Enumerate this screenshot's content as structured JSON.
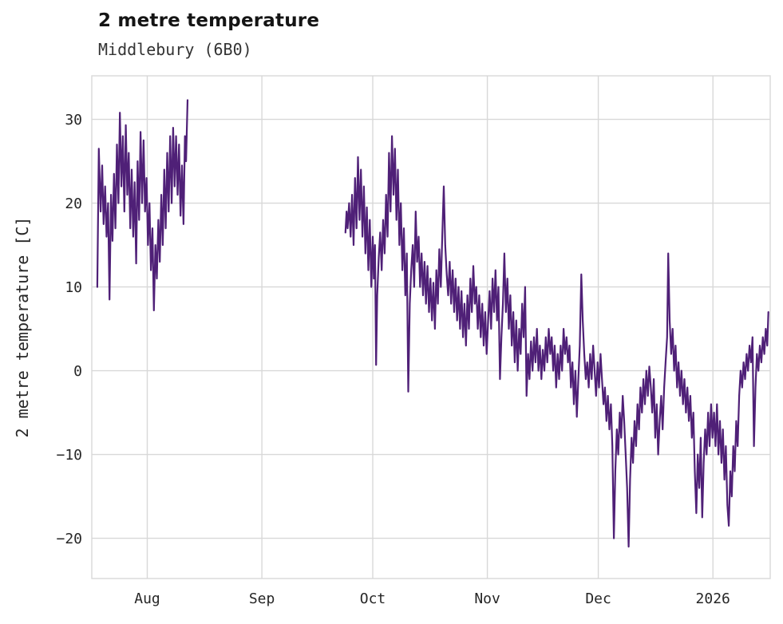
{
  "chart_data": {
    "type": "line",
    "title": "2 metre temperature",
    "subtitle": "Middlebury (6B0)",
    "xlabel": "",
    "ylabel": "2 metre temperature [C]",
    "line_color": "#4f2077",
    "grid": true,
    "legend": "none",
    "x_unit": "days",
    "xlim": [
      0,
      183.5
    ],
    "ylim": [
      -24.8,
      35.2
    ],
    "x_ticks": [
      {
        "x": 15,
        "label": "Aug"
      },
      {
        "x": 46,
        "label": "Sep"
      },
      {
        "x": 76,
        "label": "Oct"
      },
      {
        "x": 107,
        "label": "Nov"
      },
      {
        "x": 137,
        "label": "Dec"
      },
      {
        "x": 168,
        "label": "2026"
      }
    ],
    "y_ticks": [
      {
        "y": -20,
        "label": "−20"
      },
      {
        "y": -10,
        "label": "−10"
      },
      {
        "y": 0,
        "label": "0"
      },
      {
        "y": 10,
        "label": "10"
      },
      {
        "y": 20,
        "label": "20"
      },
      {
        "y": 30,
        "label": "30"
      }
    ],
    "segments": [
      [
        [
          1.5,
          10.0
        ],
        [
          1.9,
          26.5
        ],
        [
          2.4,
          19.0
        ],
        [
          2.8,
          24.5
        ],
        [
          3.2,
          17.5
        ],
        [
          3.6,
          22.0
        ],
        [
          4.0,
          16.0
        ],
        [
          4.4,
          20.0
        ],
        [
          4.8,
          8.5
        ],
        [
          5.2,
          21.0
        ],
        [
          5.6,
          15.5
        ],
        [
          6.0,
          23.5
        ],
        [
          6.4,
          17.0
        ],
        [
          6.8,
          27.0
        ],
        [
          7.2,
          20.0
        ],
        [
          7.6,
          30.8
        ],
        [
          8.0,
          22.0
        ],
        [
          8.4,
          28.0
        ],
        [
          8.8,
          19.0
        ],
        [
          9.2,
          29.3
        ],
        [
          9.6,
          21.0
        ],
        [
          10.0,
          26.0
        ],
        [
          10.4,
          17.0
        ],
        [
          10.8,
          24.0
        ],
        [
          11.2,
          16.0
        ],
        [
          11.6,
          22.5
        ],
        [
          12.0,
          12.8
        ],
        [
          12.4,
          25.0
        ],
        [
          12.8,
          18.0
        ],
        [
          13.2,
          28.5
        ],
        [
          13.6,
          20.0
        ],
        [
          14.0,
          27.5
        ],
        [
          14.4,
          19.0
        ],
        [
          14.8,
          23.0
        ],
        [
          15.2,
          15.0
        ],
        [
          15.6,
          20.0
        ],
        [
          16.0,
          12.0
        ],
        [
          16.4,
          17.0
        ],
        [
          16.8,
          7.2
        ],
        [
          17.2,
          15.0
        ],
        [
          17.6,
          11.0
        ],
        [
          18.0,
          18.0
        ],
        [
          18.4,
          13.0
        ],
        [
          18.8,
          21.0
        ],
        [
          19.2,
          15.0
        ],
        [
          19.6,
          24.0
        ],
        [
          20.0,
          17.0
        ],
        [
          20.4,
          26.0
        ],
        [
          20.8,
          19.0
        ],
        [
          21.2,
          28.0
        ],
        [
          21.6,
          20.0
        ],
        [
          22.0,
          29.0
        ],
        [
          22.4,
          22.0
        ],
        [
          22.8,
          28.0
        ],
        [
          23.2,
          21.0
        ],
        [
          23.6,
          27.0
        ],
        [
          24.0,
          18.5
        ],
        [
          24.4,
          24.5
        ],
        [
          24.8,
          17.5
        ],
        [
          25.2,
          28.0
        ],
        [
          25.5,
          25.0
        ],
        [
          25.9,
          32.3
        ]
      ],
      [
        [
          68.6,
          16.5
        ],
        [
          68.9,
          19.0
        ],
        [
          69.2,
          17.0
        ],
        [
          69.6,
          20.0
        ],
        [
          70.0,
          16.0
        ],
        [
          70.4,
          21.0
        ],
        [
          70.8,
          15.0
        ],
        [
          71.2,
          23.0
        ],
        [
          71.6,
          17.0
        ],
        [
          72.0,
          25.5
        ],
        [
          72.4,
          18.0
        ],
        [
          72.8,
          24.0
        ],
        [
          73.2,
          16.0
        ],
        [
          73.6,
          22.0
        ],
        [
          74.0,
          14.0
        ],
        [
          74.4,
          19.5
        ],
        [
          74.8,
          12.0
        ],
        [
          75.2,
          18.0
        ],
        [
          75.6,
          10.0
        ],
        [
          76.0,
          16.0
        ],
        [
          76.3,
          11.0
        ],
        [
          76.6,
          15.0
        ],
        [
          76.9,
          0.7
        ],
        [
          77.2,
          9.0
        ],
        [
          77.6,
          13.5
        ],
        [
          78.0,
          16.5
        ],
        [
          78.4,
          12.0
        ],
        [
          78.8,
          18.0
        ],
        [
          79.2,
          14.0
        ],
        [
          79.6,
          21.0
        ],
        [
          80.0,
          16.0
        ],
        [
          80.4,
          26.0
        ],
        [
          80.8,
          19.0
        ],
        [
          81.2,
          28.0
        ],
        [
          81.6,
          21.0
        ],
        [
          82.0,
          26.5
        ],
        [
          82.4,
          18.0
        ],
        [
          82.8,
          24.0
        ],
        [
          83.2,
          15.0
        ],
        [
          83.6,
          20.0
        ],
        [
          84.0,
          12.0
        ],
        [
          84.4,
          17.0
        ],
        [
          84.8,
          9.0
        ],
        [
          85.2,
          14.0
        ],
        [
          85.6,
          -2.5
        ],
        [
          86.0,
          8.0
        ],
        [
          86.4,
          12.0
        ],
        [
          86.8,
          15.0
        ],
        [
          87.2,
          10.0
        ],
        [
          87.6,
          19.0
        ],
        [
          88.0,
          13.0
        ],
        [
          88.4,
          16.0
        ],
        [
          88.8,
          10.0
        ],
        [
          89.2,
          14.0
        ],
        [
          89.6,
          9.0
        ],
        [
          90.0,
          13.0
        ],
        [
          90.4,
          8.0
        ],
        [
          90.8,
          12.5
        ],
        [
          91.2,
          7.0
        ],
        [
          91.6,
          11.0
        ],
        [
          92.0,
          6.0
        ],
        [
          92.4,
          10.5
        ],
        [
          92.8,
          5.0
        ],
        [
          93.2,
          12.0
        ],
        [
          93.6,
          8.0
        ],
        [
          94.0,
          14.5
        ],
        [
          94.4,
          10.0
        ],
        [
          94.8,
          16.0
        ],
        [
          95.2,
          22.0
        ],
        [
          95.6,
          15.0
        ],
        [
          96.0,
          11.5
        ],
        [
          96.4,
          9.0
        ],
        [
          96.8,
          13.0
        ],
        [
          97.2,
          8.0
        ],
        [
          97.6,
          12.0
        ],
        [
          98.0,
          7.0
        ],
        [
          98.4,
          11.0
        ],
        [
          98.8,
          6.0
        ],
        [
          99.2,
          10.0
        ],
        [
          99.6,
          5.0
        ],
        [
          100.0,
          9.5
        ],
        [
          100.4,
          4.0
        ],
        [
          100.8,
          8.0
        ],
        [
          101.2,
          3.0
        ],
        [
          101.6,
          9.0
        ],
        [
          102.0,
          5.0
        ],
        [
          102.4,
          11.0
        ],
        [
          102.8,
          7.0
        ],
        [
          103.2,
          12.5
        ],
        [
          103.6,
          8.0
        ],
        [
          104.0,
          10.0
        ],
        [
          104.4,
          5.0
        ],
        [
          104.8,
          9.0
        ],
        [
          105.2,
          4.0
        ],
        [
          105.6,
          8.0
        ],
        [
          106.0,
          3.0
        ],
        [
          106.4,
          7.0
        ],
        [
          106.8,
          2.0
        ],
        [
          107.2,
          6.0
        ],
        [
          107.6,
          9.5
        ],
        [
          108.0,
          5.0
        ],
        [
          108.4,
          11.0
        ],
        [
          108.8,
          7.0
        ],
        [
          109.2,
          12.0
        ],
        [
          109.6,
          6.0
        ],
        [
          110.0,
          10.0
        ],
        [
          110.4,
          -1.0
        ],
        [
          110.8,
          4.0
        ],
        [
          111.2,
          8.0
        ],
        [
          111.6,
          14.0
        ],
        [
          112.0,
          7.0
        ],
        [
          112.4,
          11.0
        ],
        [
          112.8,
          5.0
        ],
        [
          113.2,
          9.0
        ],
        [
          113.6,
          3.0
        ],
        [
          114.0,
          7.0
        ],
        [
          114.4,
          1.0
        ],
        [
          114.8,
          6.0
        ],
        [
          115.2,
          0.0
        ],
        [
          115.6,
          5.0
        ],
        [
          116.0,
          2.0
        ],
        [
          116.4,
          8.0
        ],
        [
          116.8,
          4.0
        ],
        [
          117.2,
          10.0
        ],
        [
          117.6,
          -3.0
        ],
        [
          118.0,
          2.0
        ],
        [
          118.4,
          -1.0
        ],
        [
          118.8,
          3.5
        ],
        [
          119.2,
          0.0
        ],
        [
          119.6,
          4.0
        ],
        [
          120.0,
          1.0
        ],
        [
          120.4,
          5.0
        ],
        [
          120.8,
          0.0
        ],
        [
          121.2,
          3.0
        ],
        [
          121.6,
          -1.0
        ],
        [
          122.0,
          2.5
        ],
        [
          122.4,
          0.0
        ],
        [
          122.8,
          4.0
        ],
        [
          123.2,
          1.0
        ],
        [
          123.6,
          5.0
        ],
        [
          124.0,
          2.0
        ],
        [
          124.4,
          4.0
        ],
        [
          124.8,
          0.0
        ],
        [
          125.2,
          3.0
        ],
        [
          125.6,
          -2.0
        ],
        [
          126.0,
          2.0
        ],
        [
          126.4,
          -1.0
        ],
        [
          126.8,
          3.0
        ],
        [
          127.2,
          0.0
        ],
        [
          127.6,
          5.0
        ],
        [
          128.0,
          2.0
        ],
        [
          128.4,
          4.0
        ],
        [
          128.8,
          1.0
        ],
        [
          129.2,
          3.0
        ],
        [
          129.6,
          -2.0
        ],
        [
          130.0,
          1.0
        ],
        [
          130.4,
          -4.0
        ],
        [
          130.8,
          0.0
        ],
        [
          131.2,
          -5.5
        ],
        [
          131.6,
          -1.0
        ],
        [
          132.0,
          3.0
        ],
        [
          132.4,
          11.5
        ],
        [
          132.8,
          6.0
        ],
        [
          133.2,
          2.0
        ],
        [
          133.6,
          -1.0
        ],
        [
          134.0,
          1.0
        ],
        [
          134.4,
          -2.0
        ],
        [
          134.8,
          2.0
        ],
        [
          135.2,
          -1.0
        ],
        [
          135.6,
          3.0
        ],
        [
          136.0,
          0.0
        ],
        [
          136.4,
          -3.0
        ],
        [
          136.8,
          1.0
        ],
        [
          137.2,
          -2.0
        ],
        [
          137.6,
          2.0
        ],
        [
          138.0,
          -1.0
        ],
        [
          138.4,
          -4.0
        ],
        [
          138.8,
          -2.0
        ],
        [
          139.2,
          -6.0
        ],
        [
          139.6,
          -3.0
        ],
        [
          140.0,
          -7.0
        ],
        [
          140.4,
          -4.0
        ],
        [
          140.8,
          -9.0
        ],
        [
          141.2,
          -20.0
        ],
        [
          141.6,
          -12.0
        ],
        [
          142.0,
          -7.0
        ],
        [
          142.4,
          -10.0
        ],
        [
          142.8,
          -5.0
        ],
        [
          143.2,
          -8.0
        ],
        [
          143.6,
          -3.0
        ],
        [
          144.0,
          -6.0
        ],
        [
          144.4,
          -10.0
        ],
        [
          144.8,
          -14.0
        ],
        [
          145.2,
          -21.0
        ],
        [
          145.6,
          -13.0
        ],
        [
          146.0,
          -8.0
        ],
        [
          146.4,
          -11.0
        ],
        [
          146.8,
          -6.0
        ],
        [
          147.2,
          -9.0
        ],
        [
          147.6,
          -4.0
        ],
        [
          148.0,
          -7.0
        ],
        [
          148.4,
          -2.0
        ],
        [
          148.8,
          -5.0
        ],
        [
          149.2,
          -1.0
        ],
        [
          149.6,
          -4.0
        ],
        [
          150.0,
          0.0
        ],
        [
          150.4,
          -3.0
        ],
        [
          150.8,
          0.5
        ],
        [
          151.2,
          -2.0
        ],
        [
          151.6,
          -5.0
        ],
        [
          152.0,
          -1.0
        ],
        [
          152.4,
          -8.0
        ],
        [
          152.8,
          -4.0
        ],
        [
          153.2,
          -10.0
        ],
        [
          153.6,
          -6.0
        ],
        [
          154.0,
          -3.0
        ],
        [
          154.4,
          -7.0
        ],
        [
          154.8,
          -2.0
        ],
        [
          155.2,
          1.0
        ],
        [
          155.6,
          4.0
        ],
        [
          155.9,
          14.0
        ],
        [
          156.3,
          6.0
        ],
        [
          156.7,
          2.0
        ],
        [
          157.1,
          5.0
        ],
        [
          157.5,
          0.0
        ],
        [
          157.9,
          3.0
        ],
        [
          158.3,
          -2.0
        ],
        [
          158.7,
          1.0
        ],
        [
          159.1,
          -3.0
        ],
        [
          159.5,
          0.0
        ],
        [
          159.9,
          -4.0
        ],
        [
          160.3,
          -1.0
        ],
        [
          160.7,
          -5.0
        ],
        [
          161.1,
          -2.0
        ],
        [
          161.5,
          -6.0
        ],
        [
          161.9,
          -3.0
        ],
        [
          162.3,
          -8.0
        ],
        [
          162.7,
          -5.0
        ],
        [
          163.1,
          -12.0
        ],
        [
          163.5,
          -17.0
        ],
        [
          163.9,
          -10.0
        ],
        [
          164.3,
          -14.0
        ],
        [
          164.7,
          -8.0
        ],
        [
          165.1,
          -17.5
        ],
        [
          165.5,
          -11.0
        ],
        [
          165.9,
          -7.0
        ],
        [
          166.3,
          -10.0
        ],
        [
          166.7,
          -5.0
        ],
        [
          167.1,
          -9.0
        ],
        [
          167.5,
          -4.0
        ],
        [
          167.9,
          -8.0
        ],
        [
          168.3,
          -5.0
        ],
        [
          168.7,
          -9.0
        ],
        [
          169.1,
          -4.0
        ],
        [
          169.5,
          -10.0
        ],
        [
          169.9,
          -6.0
        ],
        [
          170.3,
          -11.0
        ],
        [
          170.7,
          -7.0
        ],
        [
          171.1,
          -13.0
        ],
        [
          171.5,
          -9.0
        ],
        [
          171.9,
          -16.0
        ],
        [
          172.3,
          -18.5
        ],
        [
          172.7,
          -12.0
        ],
        [
          173.1,
          -15.0
        ],
        [
          173.5,
          -9.0
        ],
        [
          173.9,
          -12.0
        ],
        [
          174.3,
          -6.0
        ],
        [
          174.7,
          -9.0
        ],
        [
          175.1,
          -3.0
        ],
        [
          175.5,
          0.0
        ],
        [
          175.9,
          -2.0
        ],
        [
          176.3,
          1.0
        ],
        [
          176.7,
          -1.0
        ],
        [
          177.1,
          2.0
        ],
        [
          177.5,
          0.0
        ],
        [
          177.9,
          3.0
        ],
        [
          178.3,
          1.0
        ],
        [
          178.7,
          4.0
        ],
        [
          179.1,
          -9.0
        ],
        [
          179.5,
          -2.0
        ],
        [
          179.9,
          2.0
        ],
        [
          180.3,
          0.0
        ],
        [
          180.7,
          3.0
        ],
        [
          181.1,
          1.0
        ],
        [
          181.5,
          4.0
        ],
        [
          181.9,
          2.0
        ],
        [
          182.3,
          5.0
        ],
        [
          182.7,
          3.0
        ],
        [
          183.0,
          7.0
        ]
      ]
    ]
  }
}
